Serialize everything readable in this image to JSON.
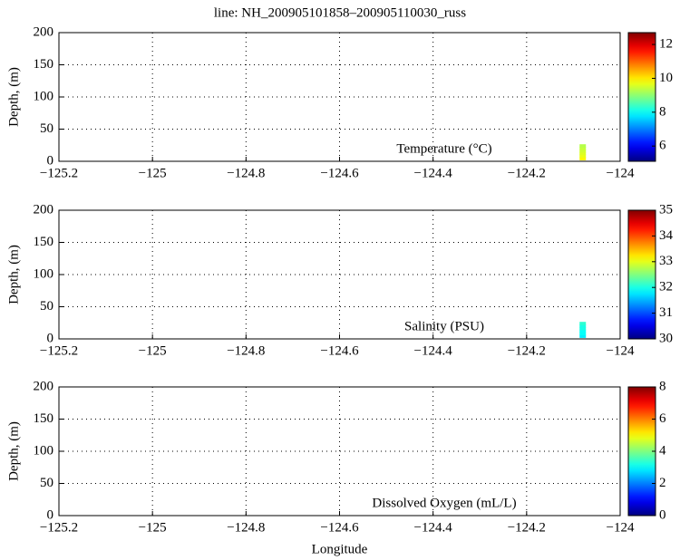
{
  "title": "line: NH_200905101858–200905110030_russ",
  "chart_data": [
    {
      "type": "section",
      "label": "Temperature (°C)",
      "ylabel": "Depth, (m)",
      "colormap": "jet",
      "x": [
        -124.08,
        -124.08,
        -124.08,
        -124.08,
        -124.08,
        -124.08
      ],
      "y": [
        4,
        8,
        12,
        16,
        20,
        24
      ],
      "values": [
        9.9,
        9.7,
        9.6,
        9.5,
        9.4,
        9.3
      ],
      "xlim": [
        -125.2,
        -124
      ],
      "ylim": [
        200,
        0
      ],
      "xticks": [
        {
          "value": -125.2,
          "label": "−125.2"
        },
        {
          "value": -125,
          "label": "−125"
        },
        {
          "value": -124.8,
          "label": "−124.8"
        },
        {
          "value": -124.6,
          "label": "−124.6"
        },
        {
          "value": -124.4,
          "label": "−124.4"
        },
        {
          "value": -124.2,
          "label": "−124.2"
        },
        {
          "value": -124,
          "label": "−124"
        }
      ],
      "yticks": [
        0,
        50,
        100,
        150,
        200
      ],
      "grid": true,
      "clim": [
        5.1,
        12.7
      ],
      "cticks": [
        6,
        8,
        10,
        12
      ]
    },
    {
      "type": "section",
      "label": "Salinity (PSU)",
      "ylabel": "Depth, (m)",
      "colormap": "jet",
      "x": [
        -124.08,
        -124.08,
        -124.08,
        -124.08,
        -124.08,
        -124.08
      ],
      "y": [
        4,
        8,
        12,
        16,
        20,
        24
      ],
      "values": [
        31.8,
        31.9,
        31.9,
        32.0,
        32.0,
        32.1
      ],
      "xlim": [
        -125.2,
        -124
      ],
      "ylim": [
        200,
        0
      ],
      "xticks": [
        {
          "value": -125.2,
          "label": "−125.2"
        },
        {
          "value": -125,
          "label": "−125"
        },
        {
          "value": -124.8,
          "label": "−124.8"
        },
        {
          "value": -124.6,
          "label": "−124.6"
        },
        {
          "value": -124.4,
          "label": "−124.4"
        },
        {
          "value": -124.2,
          "label": "−124.2"
        },
        {
          "value": -124,
          "label": "−124"
        }
      ],
      "yticks": [
        0,
        50,
        100,
        150,
        200
      ],
      "grid": true,
      "clim": [
        30,
        35
      ],
      "cticks": [
        30,
        31,
        32,
        33,
        34,
        35
      ]
    },
    {
      "type": "section",
      "label": "Dissolved Oxygen (mL/L)",
      "ylabel": "Depth, (m)",
      "xlabel": "Longitude",
      "colormap": "jet",
      "x": [],
      "y": [],
      "values": [],
      "xlim": [
        -125.2,
        -124
      ],
      "ylim": [
        200,
        0
      ],
      "xticks": [
        {
          "value": -125.2,
          "label": "−125.2"
        },
        {
          "value": -125,
          "label": "−125"
        },
        {
          "value": -124.8,
          "label": "−124.8"
        },
        {
          "value": -124.6,
          "label": "−124.6"
        },
        {
          "value": -124.4,
          "label": "−124.4"
        },
        {
          "value": -124.2,
          "label": "−124.2"
        },
        {
          "value": -124,
          "label": "−124"
        }
      ],
      "yticks": [
        0,
        50,
        100,
        150,
        200
      ],
      "grid": true,
      "clim": [
        0,
        8
      ],
      "cticks": [
        0,
        2,
        4,
        6,
        8
      ]
    }
  ]
}
